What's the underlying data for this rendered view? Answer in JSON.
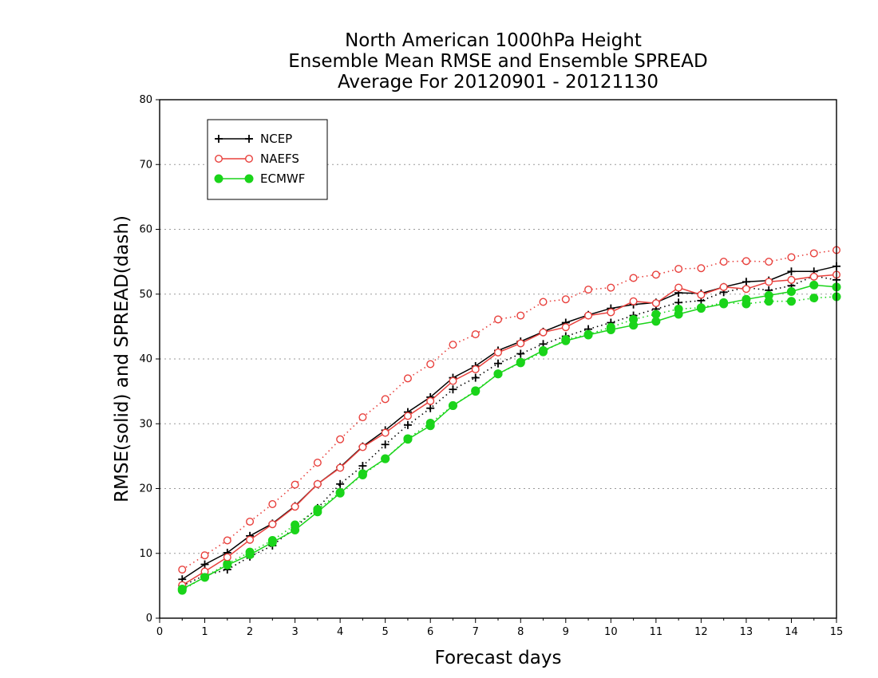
{
  "chart_data": {
    "type": "line",
    "title": [
      "North American 1000hPa Height",
      "Ensemble Mean RMSE and Ensemble SPREAD",
      "Average For 20120901 - 20121130"
    ],
    "xlabel": "Forecast days",
    "ylabel": "RMSE(solid) and SPREAD(dash)",
    "xlim": [
      0,
      15
    ],
    "ylim": [
      0,
      80
    ],
    "xticks": [
      "0",
      "1",
      "2",
      "3",
      "4",
      "5",
      "6",
      "7",
      "8",
      "9",
      "10",
      "11",
      "12",
      "13",
      "14",
      "15"
    ],
    "yticks": [
      "0",
      "10",
      "20",
      "30",
      "40",
      "50",
      "60",
      "70",
      "80"
    ],
    "grid": true,
    "legend_position": "top-left",
    "x": [
      0.5,
      1,
      1.5,
      2,
      2.5,
      3,
      3.5,
      4,
      4.5,
      5,
      5.5,
      6,
      6.5,
      7,
      7.5,
      8,
      8.5,
      9,
      9.5,
      10,
      10.5,
      11,
      11.5,
      12,
      12.5,
      13,
      13.5,
      14,
      14.5,
      15
    ],
    "series": [
      {
        "name": "NCEP",
        "metric": "RMSE",
        "style": "solid",
        "marker": "plus",
        "color": "#000000",
        "values": [
          6.0,
          8.3,
          10.1,
          12.7,
          14.6,
          17.3,
          20.7,
          23.3,
          26.5,
          29.0,
          31.8,
          34.1,
          37.1,
          38.9,
          41.3,
          42.7,
          44.2,
          45.6,
          46.8,
          47.8,
          48.4,
          48.7,
          50.2,
          50.1,
          51.1,
          51.9,
          52.1,
          53.5,
          53.5,
          54.3
        ]
      },
      {
        "name": "NCEP",
        "metric": "SPREAD",
        "style": "dash",
        "marker": "plus",
        "color": "#000000",
        "values": [
          5.0,
          6.6,
          7.5,
          9.5,
          11.2,
          14.0,
          17.0,
          20.7,
          23.5,
          26.8,
          29.8,
          32.4,
          35.3,
          37.1,
          39.3,
          40.8,
          42.3,
          43.5,
          44.6,
          45.6,
          46.7,
          47.7,
          48.7,
          49.0,
          50.3,
          51.0,
          50.6,
          51.3,
          52.8,
          52.2
        ]
      },
      {
        "name": "NAEFS",
        "metric": "RMSE",
        "style": "solid",
        "marker": "open-circle",
        "color": "#e8403c",
        "values": [
          5.1,
          7.2,
          9.4,
          12.1,
          14.5,
          17.2,
          20.7,
          23.2,
          26.4,
          28.6,
          31.2,
          33.5,
          36.6,
          38.4,
          41.0,
          42.4,
          44.1,
          44.9,
          46.7,
          47.2,
          48.9,
          48.6,
          51.0,
          49.9,
          51.1,
          50.8,
          51.9,
          52.2,
          52.7,
          53.0
        ]
      },
      {
        "name": "NAEFS",
        "metric": "SPREAD",
        "style": "dash",
        "marker": "open-circle",
        "color": "#e8403c",
        "values": [
          7.5,
          9.7,
          12.0,
          14.9,
          17.6,
          20.6,
          24.0,
          27.6,
          31.0,
          33.8,
          37.0,
          39.2,
          42.2,
          43.8,
          46.1,
          46.7,
          48.8,
          49.2,
          50.7,
          51.0,
          52.5,
          53.0,
          53.9,
          54.0,
          55.0,
          55.1,
          55.0,
          55.7,
          56.3,
          56.8
        ]
      },
      {
        "name": "ECMWF",
        "metric": "RMSE",
        "style": "solid",
        "marker": "filled-circle",
        "color": "#1ad41a",
        "values": [
          4.5,
          6.3,
          8.2,
          9.8,
          11.7,
          13.6,
          16.4,
          19.3,
          22.3,
          24.6,
          27.6,
          29.7,
          32.8,
          35.0,
          37.7,
          39.5,
          41.3,
          42.8,
          43.7,
          44.5,
          45.2,
          45.8,
          46.9,
          47.8,
          48.5,
          49.2,
          49.8,
          50.4,
          51.4,
          51.1
        ]
      },
      {
        "name": "ECMWF",
        "metric": "SPREAD",
        "style": "dash",
        "marker": "filled-circle",
        "color": "#1ad41a",
        "values": [
          4.3,
          6.4,
          8.4,
          10.2,
          12.0,
          14.4,
          16.8,
          19.4,
          22.1,
          24.6,
          27.7,
          30.1,
          32.8,
          35.1,
          37.7,
          39.4,
          41.1,
          43.0,
          43.8,
          44.9,
          46.1,
          46.9,
          47.7,
          47.9,
          48.7,
          48.5,
          48.9,
          48.9,
          49.4,
          49.6
        ]
      }
    ],
    "legend": [
      {
        "name": "NCEP",
        "color": "#000000",
        "marker": "plus"
      },
      {
        "name": "NAEFS",
        "color": "#e8403c",
        "marker": "open-circle"
      },
      {
        "name": "ECMWF",
        "color": "#1ad41a",
        "marker": "filled-circle"
      }
    ]
  }
}
